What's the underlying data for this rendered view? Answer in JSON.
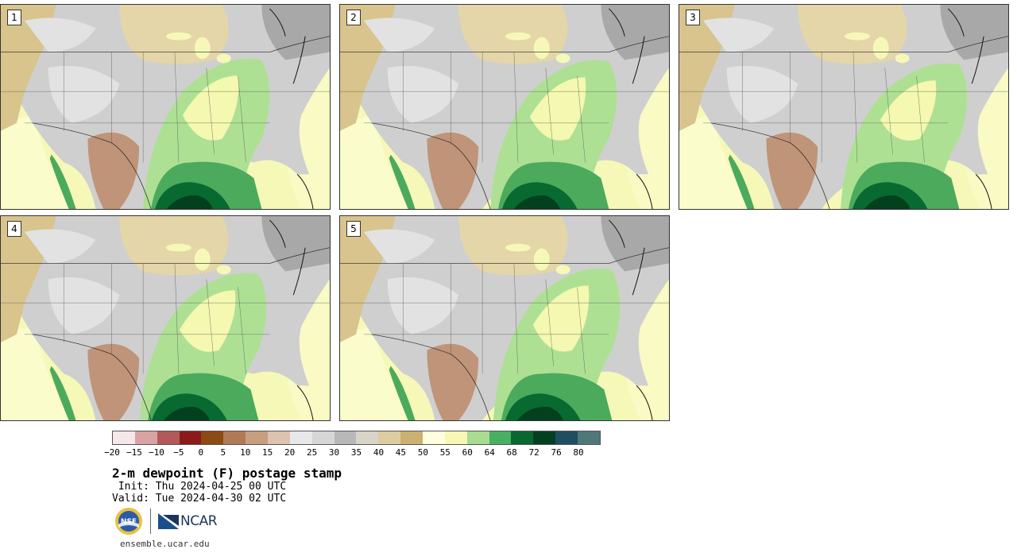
{
  "product": {
    "title": "2-m dewpoint (F) postage stamp",
    "init": " Init: Thu 2024-04-25 00 UTC",
    "valid": "Valid: Tue 2024-04-30 02 UTC",
    "site": "ensemble.ucar.edu"
  },
  "logos": {
    "nsf_text": "NSF",
    "ncar_text": "NCAR"
  },
  "members": [
    {
      "label": "1"
    },
    {
      "label": "2"
    },
    {
      "label": "3"
    },
    {
      "label": "4"
    },
    {
      "label": "5"
    }
  ],
  "colorbar": {
    "ticks": [
      "−20",
      "−15",
      "−10",
      "−5",
      "0",
      "5",
      "10",
      "15",
      "20",
      "25",
      "30",
      "35",
      "40",
      "45",
      "50",
      "55",
      "60",
      "64",
      "68",
      "72",
      "76",
      "80"
    ],
    "colors": [
      "#f5e8e8",
      "#d9a3a3",
      "#b25a5a",
      "#8c1a1a",
      "#8c4a14",
      "#b07a55",
      "#c89e80",
      "#ddc2b0",
      "#e8e8e8",
      "#d6d6d6",
      "#b8b8b8",
      "#d8d4c8",
      "#dccca0",
      "#ccb070",
      "#ffffe0",
      "#f6f8b4",
      "#a8dc90",
      "#48b060",
      "#086830",
      "#034020",
      "#1e4e60",
      "#507878"
    ]
  },
  "map_palette": {
    "ocean": "#f6f8b8",
    "ocean_far": "#fbfccc",
    "land_gray": "#cfcfcf",
    "land_light": "#e2e2e2",
    "land_dark": "#a8a8a8",
    "tan": "#d8c48c",
    "tan_light": "#e4d6a8",
    "brown": "#c09478",
    "green_light": "#aee094",
    "green": "#4caa5c",
    "green_dark": "#086a30",
    "green_darker": "#03401e"
  }
}
